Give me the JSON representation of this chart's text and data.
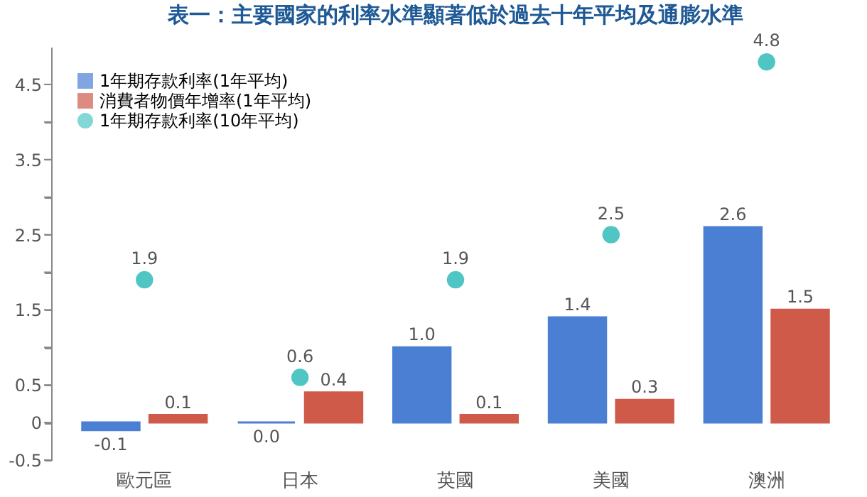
{
  "chart_data": {
    "type": "bar",
    "title": "表一：主要國家的利率水準顯著低於過去十年平均及通膨水準",
    "categories": [
      "歐元區",
      "日本",
      "英國",
      "美國",
      "澳洲"
    ],
    "series": [
      {
        "name": "1年期存款利率(1年平均)",
        "color": "#4a7fd4",
        "values": [
          -0.1,
          0.0,
          1.0,
          1.4,
          2.6
        ],
        "value_labels": [
          "-0.1",
          "0.0",
          "1.0",
          "1.4",
          "2.6"
        ]
      },
      {
        "name": "消費者物價年增率(1年平均)",
        "color": "#cf5a4a",
        "values": [
          0.1,
          0.4,
          0.1,
          0.3,
          1.5
        ]
      },
      {
        "name": "1年期存款利率(10年平均)",
        "color": "#4fc6c4",
        "type": "scatter",
        "marker": "circle",
        "values": [
          1.9,
          0.6,
          1.9,
          2.5,
          4.8
        ]
      }
    ],
    "ylim": [
      -0.5,
      5.0
    ],
    "yticks": [
      -0.5,
      0,
      0.5,
      {
        "value": 1.0,
        "label": null
      },
      1.5,
      {
        "value": 2.0,
        "label": null
      },
      2.5,
      {
        "value": 3.0,
        "label": null
      },
      3.5,
      {
        "value": 4.0,
        "label": null
      },
      4.5
    ],
    "data_labels": true,
    "grid": false,
    "legend": "top left"
  }
}
